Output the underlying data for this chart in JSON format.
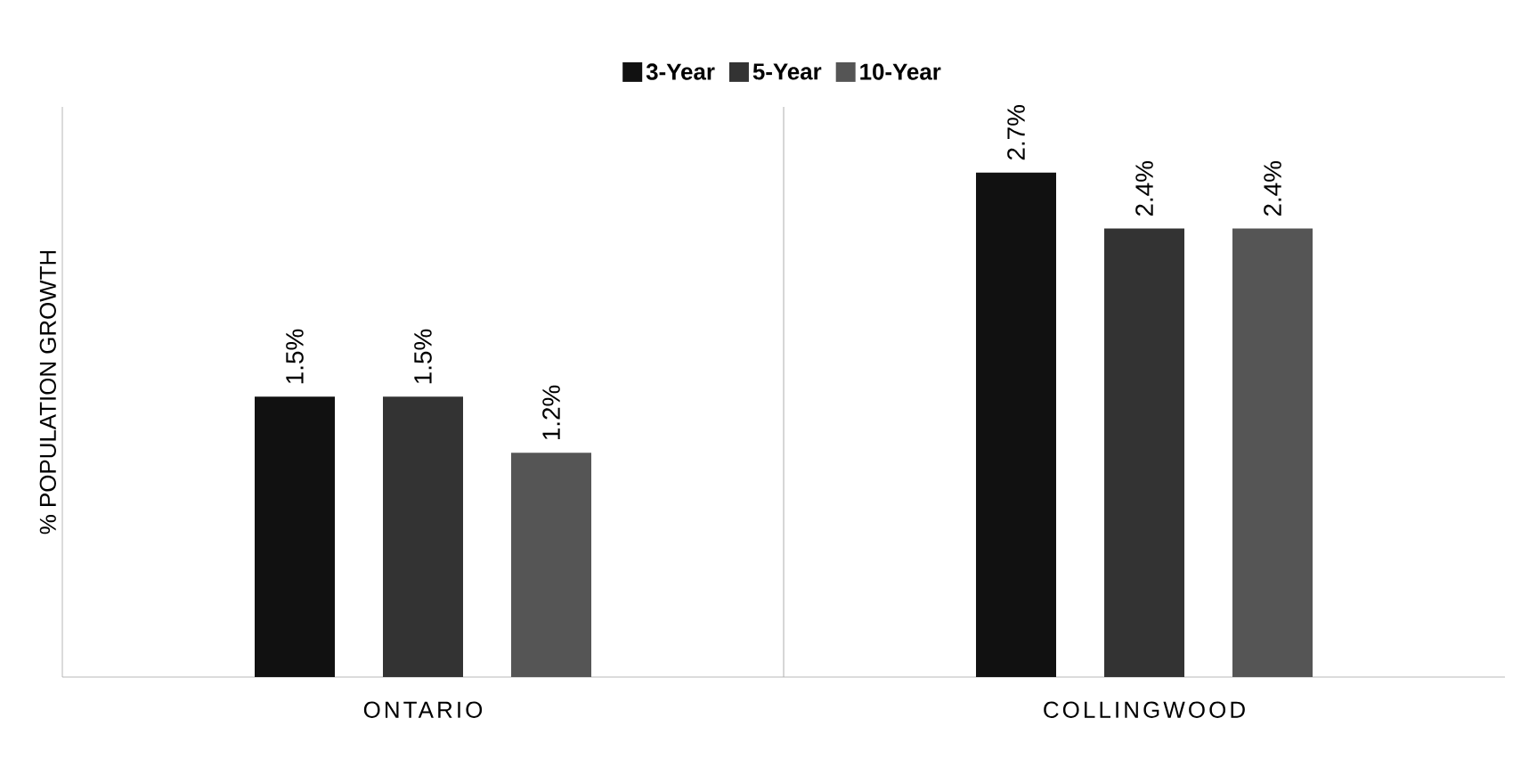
{
  "chart_data": {
    "type": "bar",
    "ylabel": "% POPULATION GROWTH",
    "categories": [
      "ONTARIO",
      "COLLINGWOOD"
    ],
    "series": [
      {
        "name": "3-Year",
        "color": "#111111",
        "values": [
          1.5,
          2.7
        ],
        "value_labels": [
          "1.5%",
          "2.7%"
        ]
      },
      {
        "name": "5-Year",
        "color": "#333333",
        "values": [
          1.5,
          2.4
        ],
        "value_labels": [
          "1.5%",
          "2.4%"
        ]
      },
      {
        "name": "10-Year",
        "color": "#555555",
        "values": [
          1.2,
          2.4
        ],
        "value_labels": [
          "1.2%",
          "2.4%"
        ]
      }
    ],
    "legend": "top"
  }
}
